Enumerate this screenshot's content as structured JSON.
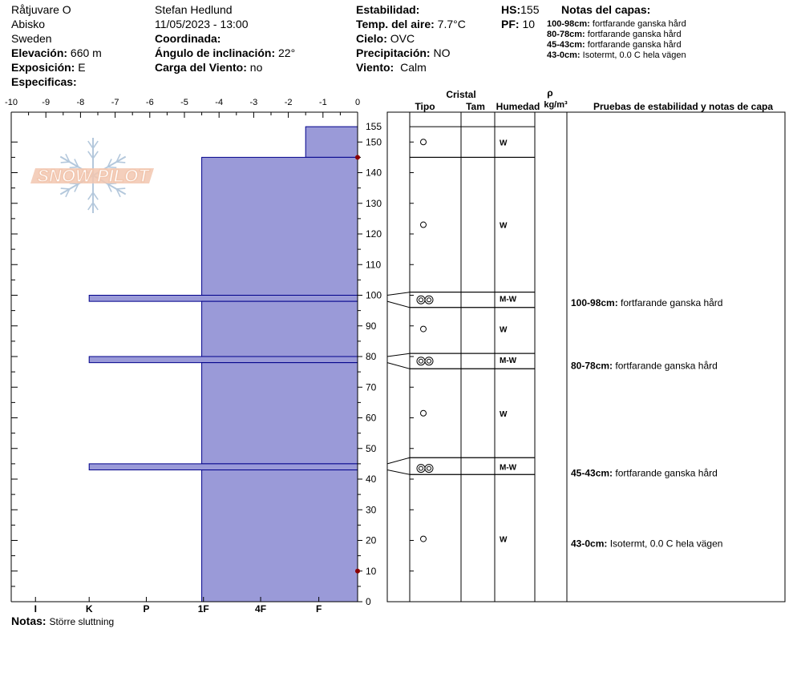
{
  "header": {
    "location": "Råtjuvare O",
    "region": "Abisko",
    "country": "Sweden",
    "elevation_label": "Elevación:",
    "elevation_value": "660 m",
    "aspect_label": "Exposición:",
    "aspect_value": "E",
    "specifics_label": "Especificas:",
    "observer": "Stefan Hedlund",
    "datetime": "11/05/2023 - 13:00",
    "coordinates_label": "Coordinada:",
    "slope_label": "Ángulo de inclinación:",
    "slope_value": "22°",
    "wind_load_label": "Carga del Viento:",
    "wind_load_value": "no",
    "stability_label": "Estabilidad:",
    "air_temp_label": "Temp. del aire:",
    "air_temp_value": "7.7°C",
    "sky_label": "Cielo:",
    "sky_value": "OVC",
    "precip_label": "Precipitación:",
    "precip_value": "NO",
    "wind_label": "Viento:",
    "wind_value": "Calm",
    "hs_label": "HS:",
    "hs_value": "155",
    "pf_label": "PF:",
    "pf_value": "10",
    "layer_notes_label": "Notas del capas:",
    "layer_notes": [
      {
        "range": "100-98cm:",
        "text": "fortfarande ganska hård"
      },
      {
        "range": "80-78cm:",
        "text": "fortfarande ganska hård"
      },
      {
        "range": "45-43cm:",
        "text": "fortfarande ganska hård"
      },
      {
        "range": "43-0cm:",
        "text": "Isotermt, 0.0 C hela vägen"
      }
    ]
  },
  "logo_text": "SNOW PILOT",
  "columns": {
    "crystal": "Cristal",
    "type": "Tipo",
    "size": "Tam",
    "moisture": "Humedad",
    "rho": "ρ",
    "density_unit": "kg/m³",
    "tests": "Pruebas de estabilidad y notas de capa"
  },
  "notes_label": "Notas:",
  "notes_value": "Större sluttning",
  "colors": {
    "fill": "#9a9ad8",
    "stroke": "#00008b",
    "temp_marker": "#8b0000",
    "logo": "#f2c7b0",
    "logo_flake": "#b4c8dc"
  },
  "chart_data": {
    "type": "snow_profile",
    "height_axis": {
      "min": 0,
      "max": 155,
      "ticks": [
        0,
        10,
        20,
        30,
        40,
        50,
        60,
        70,
        80,
        90,
        100,
        110,
        120,
        130,
        140,
        150,
        155
      ]
    },
    "temperature_axis": {
      "min": -10,
      "max": 0,
      "ticks": [
        -10,
        -9,
        -8,
        -7,
        -6,
        -5,
        -4,
        -3,
        -2,
        -1,
        0
      ]
    },
    "hardness_axis": {
      "labels": [
        "I",
        "K",
        "P",
        "1F",
        "4F",
        "F"
      ]
    },
    "layers": [
      {
        "top": 155,
        "bottom": 145,
        "hardness": "1F-F",
        "grain_type": "rounded",
        "moisture": "W",
        "hardness_value": 1.5
      },
      {
        "top": 145,
        "bottom": 100,
        "hardness": "1F",
        "grain_type": "rounded",
        "moisture": "W",
        "hardness_value": 4.5
      },
      {
        "top": 100,
        "bottom": 98,
        "hardness": "K",
        "grain_type": "clustered rounded",
        "moisture": "M-W",
        "hardness_value": 7.75,
        "note_range": "100-98cm:",
        "note": "fortfarande ganska hård"
      },
      {
        "top": 98,
        "bottom": 80,
        "hardness": "1F",
        "grain_type": "rounded",
        "moisture": "W",
        "hardness_value": 4.5
      },
      {
        "top": 80,
        "bottom": 78,
        "hardness": "K",
        "grain_type": "clustered rounded",
        "moisture": "M-W",
        "hardness_value": 7.75,
        "note_range": "80-78cm:",
        "note": "fortfarande ganska hård"
      },
      {
        "top": 78,
        "bottom": 45,
        "hardness": "1F",
        "grain_type": "rounded",
        "moisture": "W",
        "hardness_value": 4.5
      },
      {
        "top": 45,
        "bottom": 43,
        "hardness": "K",
        "grain_type": "clustered rounded",
        "moisture": "M-W",
        "hardness_value": 7.75,
        "note_range": "45-43cm:",
        "note": "fortfarande ganska hård"
      },
      {
        "top": 43,
        "bottom": 0,
        "hardness": "1F",
        "grain_type": "rounded",
        "moisture": "W",
        "hardness_value": 4.5,
        "note_range": "43-0cm:",
        "note": "Isotermt, 0.0 C hela vägen"
      }
    ],
    "grain_rows": [
      {
        "row_top": 155,
        "row_bottom": 145,
        "symbol_height": 150,
        "moisture_height": 150
      },
      {
        "row_top": 145,
        "row_bottom": 101,
        "symbol_height": 123,
        "moisture_height": 123
      },
      {
        "row_top": 101,
        "row_bottom": 96,
        "symbol_height": 98.5,
        "moisture_height": 99
      },
      {
        "row_top": 96,
        "row_bottom": 81,
        "symbol_height": 89,
        "moisture_height": 89
      },
      {
        "row_top": 81,
        "row_bottom": 76,
        "symbol_height": 78.5,
        "moisture_height": 79
      },
      {
        "row_top": 76,
        "row_bottom": 47,
        "symbol_height": 61.5,
        "moisture_height": 61.5
      },
      {
        "row_top": 47,
        "row_bottom": 41.5,
        "symbol_height": 43.5,
        "moisture_height": 44
      },
      {
        "row_top": 41.5,
        "row_bottom": 0,
        "symbol_height": 20.5,
        "moisture_height": 20.5
      }
    ],
    "notes": [
      {
        "height": 97.5
      },
      {
        "height": 77
      },
      {
        "height": 42
      },
      {
        "height": 19
      }
    ],
    "temperature_points": [
      {
        "height": 145,
        "temp": 0
      },
      {
        "height": 10,
        "temp": 0
      }
    ]
  }
}
